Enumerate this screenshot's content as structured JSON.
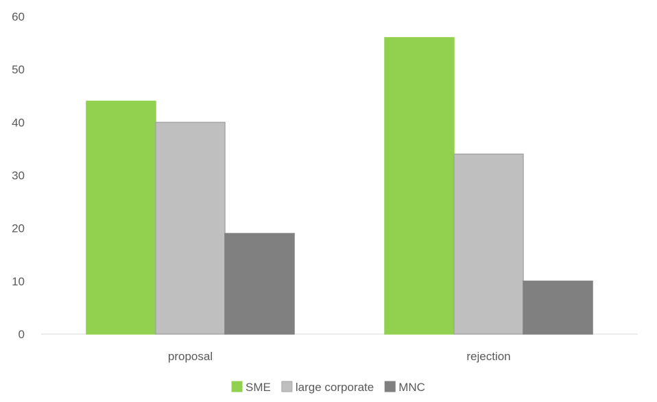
{
  "chart_data": {
    "type": "bar",
    "title": "",
    "xlabel": "",
    "ylabel": "",
    "categories": [
      "proposal",
      "rejection"
    ],
    "series": [
      {
        "name": "SME",
        "values": [
          44,
          56
        ],
        "color": "#92d050",
        "stroke": "#92d050"
      },
      {
        "name": "large corporate",
        "values": [
          40,
          34
        ],
        "color": "#bfbfbf",
        "stroke": "#a6a6a6"
      },
      {
        "name": "MNC",
        "values": [
          19,
          10
        ],
        "color": "#808080",
        "stroke": "#808080"
      }
    ],
    "ylim": [
      0,
      60
    ],
    "yticks": [
      0,
      10,
      20,
      30,
      40,
      50,
      60
    ],
    "grid": false,
    "legend_position": "bottom",
    "axis_color": "#d9d9d9",
    "text_color": "#595959"
  }
}
